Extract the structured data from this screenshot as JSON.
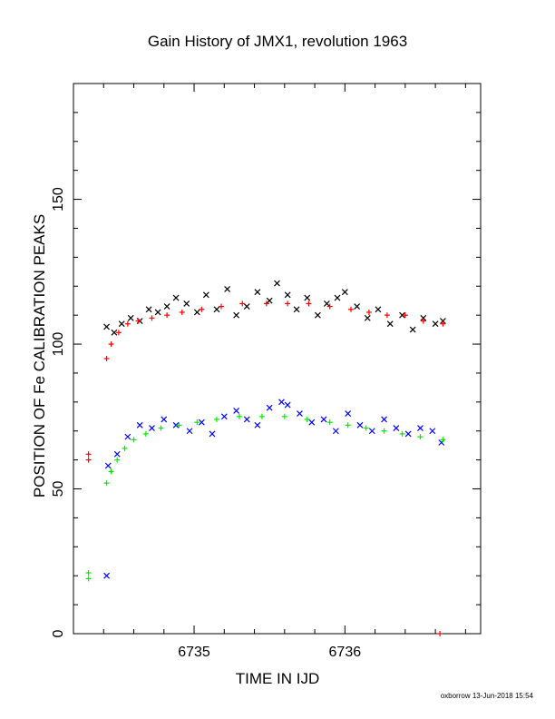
{
  "chart_data": {
    "type": "scatter",
    "title": "Gain History of JMX1, revolution 1963",
    "xlabel": "TIME IN IJD",
    "ylabel": "POSITION OF Fe CALIBRATION PEAKS",
    "xlim": [
      6734.2,
      6736.9
    ],
    "ylim": [
      0,
      190
    ],
    "x_ticks": [
      6735,
      6736
    ],
    "y_ticks": [
      0,
      50,
      100,
      150
    ],
    "grid": false,
    "footer": "oxborrow 13-Jun-2018 15:54",
    "series": [
      {
        "marker": "x",
        "color": "#000000",
        "points": [
          [
            6734.42,
            106
          ],
          [
            6734.47,
            104
          ],
          [
            6734.52,
            107
          ],
          [
            6734.58,
            109
          ],
          [
            6734.64,
            108
          ],
          [
            6734.7,
            112
          ],
          [
            6734.76,
            111
          ],
          [
            6734.82,
            113
          ],
          [
            6734.88,
            116
          ],
          [
            6734.95,
            114
          ],
          [
            6735.02,
            111
          ],
          [
            6735.08,
            117
          ],
          [
            6735.15,
            112
          ],
          [
            6735.22,
            119
          ],
          [
            6735.28,
            110
          ],
          [
            6735.35,
            113
          ],
          [
            6735.42,
            118
          ],
          [
            6735.5,
            115
          ],
          [
            6735.55,
            121
          ],
          [
            6735.62,
            117
          ],
          [
            6735.68,
            112
          ],
          [
            6735.75,
            116
          ],
          [
            6735.82,
            110
          ],
          [
            6735.88,
            114
          ],
          [
            6735.95,
            116
          ],
          [
            6736.0,
            118
          ],
          [
            6736.08,
            113
          ],
          [
            6736.15,
            109
          ],
          [
            6736.22,
            112
          ],
          [
            6736.3,
            107
          ],
          [
            6736.38,
            110
          ],
          [
            6736.45,
            105
          ],
          [
            6736.52,
            109
          ],
          [
            6736.6,
            107
          ],
          [
            6736.65,
            108
          ]
        ]
      },
      {
        "marker": "+",
        "color": "#ff0000",
        "points": [
          [
            6734.42,
            95
          ],
          [
            6734.45,
            100
          ],
          [
            6734.5,
            104
          ],
          [
            6734.56,
            107
          ],
          [
            6734.63,
            108
          ],
          [
            6734.72,
            109
          ],
          [
            6734.82,
            110
          ],
          [
            6734.92,
            111
          ],
          [
            6735.05,
            112
          ],
          [
            6735.18,
            113
          ],
          [
            6735.32,
            114
          ],
          [
            6735.48,
            114
          ],
          [
            6735.62,
            114
          ],
          [
            6735.76,
            114
          ],
          [
            6735.9,
            113
          ],
          [
            6736.04,
            112
          ],
          [
            6736.16,
            111
          ],
          [
            6736.28,
            110
          ],
          [
            6736.4,
            110
          ],
          [
            6736.52,
            108
          ],
          [
            6736.65,
            107
          ]
        ]
      },
      {
        "marker": "x",
        "color": "#0000ff",
        "points": [
          [
            6734.43,
            58
          ],
          [
            6734.49,
            62
          ],
          [
            6734.56,
            68
          ],
          [
            6734.64,
            72
          ],
          [
            6734.72,
            71
          ],
          [
            6734.8,
            74
          ],
          [
            6734.88,
            72
          ],
          [
            6734.97,
            70
          ],
          [
            6735.05,
            73
          ],
          [
            6735.12,
            69
          ],
          [
            6735.2,
            75
          ],
          [
            6735.28,
            77
          ],
          [
            6735.35,
            74
          ],
          [
            6735.42,
            72
          ],
          [
            6735.5,
            78
          ],
          [
            6735.58,
            80
          ],
          [
            6735.62,
            79
          ],
          [
            6735.7,
            76
          ],
          [
            6735.78,
            73
          ],
          [
            6735.86,
            74
          ],
          [
            6735.94,
            70
          ],
          [
            6736.02,
            76
          ],
          [
            6736.1,
            72
          ],
          [
            6736.18,
            70
          ],
          [
            6736.26,
            74
          ],
          [
            6736.34,
            71
          ],
          [
            6736.42,
            69
          ],
          [
            6736.5,
            71
          ],
          [
            6736.58,
            70
          ],
          [
            6736.64,
            66
          ],
          [
            6734.42,
            20
          ]
        ]
      },
      {
        "marker": "+",
        "color": "#00ee00",
        "points": [
          [
            6734.42,
            52
          ],
          [
            6734.45,
            56
          ],
          [
            6734.49,
            60
          ],
          [
            6734.54,
            64
          ],
          [
            6734.6,
            67
          ],
          [
            6734.68,
            69
          ],
          [
            6734.78,
            71
          ],
          [
            6734.9,
            72
          ],
          [
            6735.02,
            73
          ],
          [
            6735.15,
            74
          ],
          [
            6735.3,
            75
          ],
          [
            6735.45,
            75
          ],
          [
            6735.6,
            75
          ],
          [
            6735.75,
            74
          ],
          [
            6735.9,
            73
          ],
          [
            6736.02,
            72
          ],
          [
            6736.14,
            71
          ],
          [
            6736.26,
            70
          ],
          [
            6736.38,
            69
          ],
          [
            6736.5,
            68
          ],
          [
            6736.65,
            67
          ]
        ]
      },
      {
        "marker": "+",
        "color": "#ff0000",
        "points": [
          [
            6734.3,
            62
          ],
          [
            6734.3,
            60
          ],
          [
            6736.63,
            0
          ]
        ]
      },
      {
        "marker": "+",
        "color": "#00ee00",
        "points": [
          [
            6734.3,
            21
          ],
          [
            6734.3,
            19
          ]
        ]
      }
    ]
  }
}
